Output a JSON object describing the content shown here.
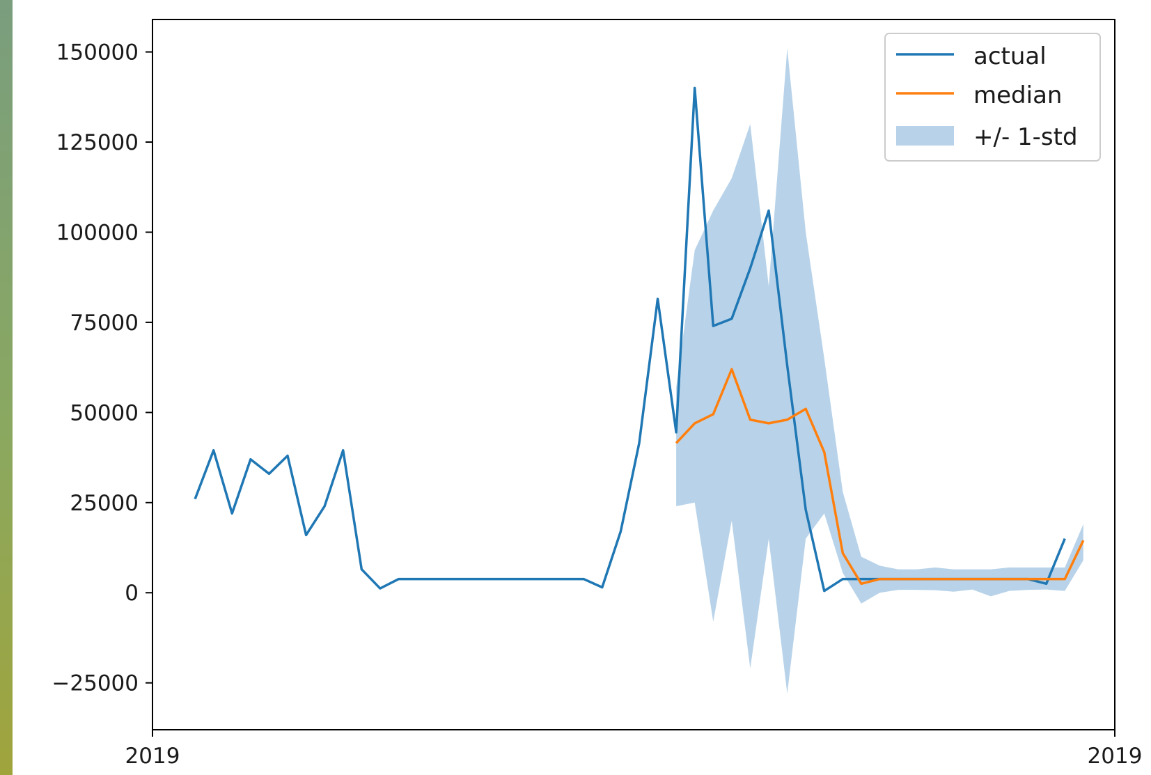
{
  "chart_data": {
    "type": "line",
    "title": "",
    "xlabel": "",
    "ylabel": "",
    "x_tick_labels": [
      "2019",
      "2019"
    ],
    "y_ticks": [
      -25000,
      0,
      25000,
      50000,
      75000,
      100000,
      125000,
      150000
    ],
    "y_tick_labels": [
      "−25000",
      "0",
      "25000",
      "50000",
      "75000",
      "100000",
      "125000",
      "150000"
    ],
    "ylim": [
      -38000,
      159000
    ],
    "x_index_range": [
      -2.3,
      49.7
    ],
    "grid": false,
    "legend_position": "top-right",
    "colors": {
      "actual": "#1f77b4",
      "median": "#ff7f0e",
      "band": "#a6c8e4"
    },
    "series": [
      {
        "name": "actual",
        "kind": "line",
        "x": [
          0,
          1,
          2,
          3,
          4,
          5,
          6,
          7,
          8,
          9,
          10,
          11,
          12,
          13,
          14,
          15,
          16,
          17,
          18,
          19,
          20,
          21,
          22,
          23,
          24,
          25,
          26,
          27,
          28,
          29,
          30,
          31,
          32,
          33,
          34,
          35,
          36,
          37,
          38,
          39,
          40,
          41,
          42,
          43,
          44,
          45,
          46,
          47
        ],
        "y": [
          26000,
          39500,
          22000,
          37000,
          33000,
          38000,
          16000,
          24000,
          39500,
          6500,
          1200,
          3800,
          3800,
          3800,
          3800,
          3800,
          3800,
          3800,
          3800,
          3800,
          3800,
          3800,
          1500,
          17000,
          41500,
          81500,
          44500,
          140000,
          74000,
          76000,
          90000,
          106000,
          63000,
          23000,
          500,
          3800,
          3800,
          3800,
          3800,
          3800,
          3800,
          3800,
          3800,
          3800,
          3800,
          3800,
          2500,
          15000
        ]
      },
      {
        "name": "median",
        "kind": "line",
        "x": [
          26,
          27,
          28,
          29,
          30,
          31,
          32,
          33,
          34,
          35,
          36,
          37,
          38,
          39,
          40,
          41,
          42,
          43,
          44,
          45,
          46,
          47,
          48
        ],
        "y": [
          41500,
          47000,
          49500,
          62000,
          48000,
          47000,
          48000,
          51000,
          39000,
          11000,
          2500,
          3800,
          3800,
          3800,
          3800,
          3800,
          3800,
          3800,
          3800,
          3800,
          3800,
          3800,
          14500
        ]
      },
      {
        "name": "+/- 1-std",
        "kind": "band",
        "x": [
          26,
          27,
          28,
          29,
          30,
          31,
          32,
          33,
          34,
          35,
          36,
          37,
          38,
          39,
          40,
          41,
          42,
          43,
          44,
          45,
          46,
          47,
          48
        ],
        "upper": [
          57000,
          95000,
          106000,
          115000,
          130000,
          85000,
          151000,
          100000,
          65000,
          28000,
          10000,
          7500,
          6500,
          6500,
          7000,
          6500,
          6500,
          6500,
          7000,
          7000,
          7000,
          7000,
          19000
        ],
        "lower": [
          24000,
          25000,
          -8000,
          20000,
          -21000,
          15000,
          -28000,
          15000,
          22000,
          5500,
          -3000,
          0,
          800,
          800,
          700,
          300,
          900,
          -1000,
          500,
          800,
          900,
          500,
          9000
        ]
      }
    ]
  }
}
